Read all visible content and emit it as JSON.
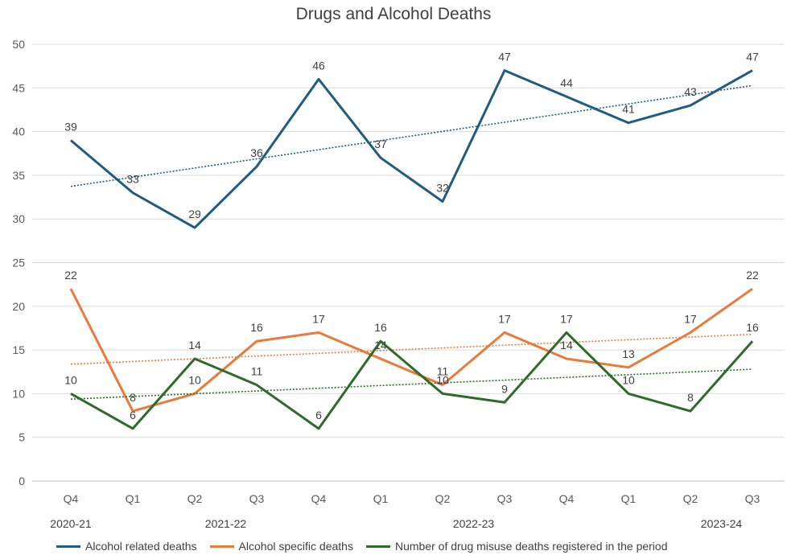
{
  "chart_data": {
    "type": "line",
    "title": "Drugs and Alcohol Deaths",
    "categories": [
      "Q4",
      "Q1",
      "Q2",
      "Q3",
      "Q4",
      "Q1",
      "Q2",
      "Q3",
      "Q4",
      "Q1",
      "Q2",
      "Q3"
    ],
    "year_labels": [
      {
        "label": "2020-21",
        "index": 0
      },
      {
        "label": "2021-22",
        "index": 2.5
      },
      {
        "label": "2022-23",
        "index": 6.5
      },
      {
        "label": "2023-24",
        "index": 10.5
      }
    ],
    "ylim": [
      0,
      50
    ],
    "yticks": [
      0,
      5,
      10,
      15,
      20,
      25,
      30,
      35,
      40,
      45,
      50
    ],
    "grid": true,
    "legend_position": "bottom",
    "trendlines": true,
    "series": [
      {
        "name": "Alcohol related deaths",
        "color": "#1f5c80",
        "values": [
          39,
          33,
          29,
          36,
          46,
          37,
          32,
          47,
          44,
          41,
          43,
          47
        ]
      },
      {
        "name": "Alcohol specific deaths",
        "color": "#e97a3a",
        "values": [
          22,
          8,
          10,
          16,
          17,
          14,
          11,
          17,
          14,
          13,
          17,
          22
        ]
      },
      {
        "name": "Number of drug misuse deaths registered in the period",
        "color": "#2e6b2a",
        "values": [
          10,
          6,
          14,
          11,
          6,
          16,
          10,
          9,
          17,
          10,
          8,
          16
        ]
      }
    ]
  }
}
